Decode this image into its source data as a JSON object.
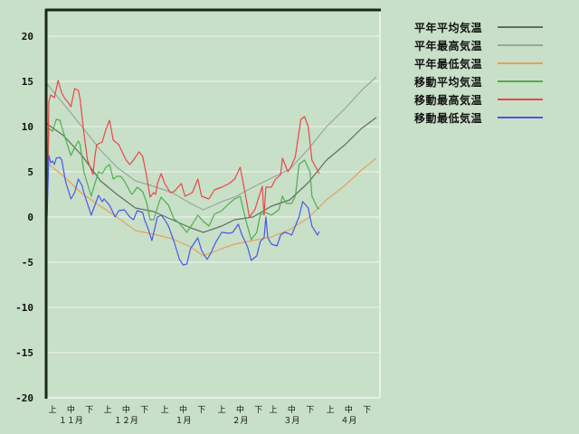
{
  "chart_data": {
    "type": "line",
    "title": "",
    "xlabel": "",
    "ylabel": "",
    "ylim": [
      -20,
      23
    ],
    "yticks": [
      "20",
      "15",
      "10",
      "5",
      "0",
      "-5",
      "-10",
      "-15",
      "-20"
    ],
    "ytick_values": [
      20,
      15,
      10,
      5,
      0,
      -5,
      -10,
      -15,
      -20
    ],
    "grid": true,
    "legend_position": "right",
    "x_months": [
      {
        "label": "１１月",
        "month": "11"
      },
      {
        "label": "１２月",
        "month": "12"
      },
      {
        "label": "１月",
        "month": "01"
      },
      {
        "label": "２月",
        "month": "02"
      },
      {
        "label": "３月",
        "month": "03"
      },
      {
        "label": "４月",
        "month": "04"
      }
    ],
    "x_dekads": [
      "上",
      "中",
      "下"
    ],
    "series": [
      {
        "name": "平年平均気温",
        "color": "#5f6f5f",
        "x": [
          "11-01",
          "11-10",
          "11-20",
          "11-30",
          "12-09",
          "12-19",
          "12-29",
          "01-08",
          "01-18",
          "01-25",
          "02-04",
          "02-11",
          "02-21",
          "03-03",
          "03-13",
          "03-23",
          "04-02",
          "04-12",
          "04-21",
          "04-29"
        ],
        "y": [
          10.3,
          9.0,
          6.8,
          4.0,
          2.5,
          1.0,
          0.6,
          -0.3,
          -1.2,
          -1.7,
          -1.0,
          -0.3,
          0.0,
          1.2,
          1.9,
          3.8,
          6.3,
          8.0,
          9.8,
          11.0
        ]
      },
      {
        "name": "平年最高気温",
        "color": "#98a898",
        "x": [
          "11-01",
          "11-10",
          "11-20",
          "11-30",
          "12-09",
          "12-19",
          "12-29",
          "01-08",
          "01-18",
          "01-25",
          "02-04",
          "02-11",
          "02-21",
          "03-03",
          "03-13",
          "03-23",
          "04-02",
          "04-12",
          "04-21",
          "04-29"
        ],
        "y": [
          14.7,
          12.5,
          10.0,
          7.4,
          5.5,
          4.0,
          3.4,
          2.7,
          1.5,
          0.8,
          1.7,
          2.2,
          3.3,
          4.3,
          5.3,
          7.5,
          10.0,
          12.0,
          14.0,
          15.5
        ]
      },
      {
        "name": "平年最低気温",
        "color": "#e8a060",
        "x": [
          "11-01",
          "11-10",
          "11-20",
          "11-30",
          "12-09",
          "12-19",
          "12-29",
          "01-08",
          "01-18",
          "01-25",
          "02-04",
          "02-11",
          "02-21",
          "03-03",
          "03-13",
          "03-23",
          "04-02",
          "04-12",
          "04-21",
          "04-29"
        ],
        "y": [
          6.0,
          4.5,
          2.6,
          1.2,
          0.0,
          -1.5,
          -1.9,
          -2.4,
          -3.3,
          -4.3,
          -3.5,
          -3.0,
          -2.6,
          -2.2,
          -1.4,
          -0.1,
          1.9,
          3.5,
          5.2,
          6.5
        ]
      },
      {
        "name": "移動平均気温",
        "color": "#4caf4c",
        "x": [
          "11-01",
          "11-02",
          "11-04",
          "11-06",
          "11-08",
          "11-10",
          "11-12",
          "11-14",
          "11-16",
          "11-18",
          "11-19",
          "11-21",
          "11-25",
          "11-27",
          "11-29",
          "12-01",
          "12-03",
          "12-05",
          "12-07",
          "12-09",
          "12-11",
          "12-13",
          "12-17",
          "12-18",
          "12-20",
          "12-23",
          "12-25",
          "12-27",
          "12-29",
          "01-01",
          "01-02",
          "01-06",
          "01-09",
          "01-12",
          "01-16",
          "01-19",
          "01-22",
          "01-25",
          "01-28",
          "01-31",
          "02-04",
          "02-08",
          "02-11",
          "02-14",
          "02-17",
          "02-20",
          "02-23",
          "02-25",
          "02-28",
          "03-03",
          "03-07",
          "03-09",
          "03-11",
          "03-14",
          "03-16",
          "03-18",
          "03-21",
          "03-24",
          "03-25",
          "03-28",
          "03-29"
        ],
        "y": [
          0,
          9.8,
          9.5,
          10.8,
          10.7,
          9.3,
          8.0,
          6.8,
          7.7,
          8.4,
          8.0,
          5.0,
          2.3,
          3.7,
          5.0,
          4.8,
          5.5,
          5.8,
          4.2,
          4.5,
          4.5,
          4.0,
          2.5,
          2.7,
          3.3,
          2.8,
          1.7,
          -0.3,
          -0.3,
          1.7,
          2.2,
          1.3,
          -0.2,
          -0.7,
          -1.7,
          -0.8,
          0.2,
          -0.5,
          -1.0,
          0.3,
          0.7,
          1.5,
          2.0,
          2.3,
          -0.3,
          -2.5,
          -1.7,
          0.3,
          0.5,
          0.2,
          0.8,
          2.3,
          1.5,
          1.5,
          2.3,
          5.8,
          6.3,
          5.0,
          2.3,
          1.0,
          0.9
        ]
      },
      {
        "name": "移動最高気温",
        "color": "#e84848",
        "x": [
          "11-01",
          "11-02",
          "11-03",
          "11-05",
          "11-07",
          "11-09",
          "11-11",
          "11-12",
          "11-14",
          "11-16",
          "11-18",
          "11-19",
          "11-21",
          "11-23",
          "11-26",
          "11-27",
          "11-28",
          "12-01",
          "12-03",
          "12-05",
          "12-07",
          "12-10",
          "12-13",
          "12-14",
          "12-16",
          "12-18",
          "12-21",
          "12-23",
          "12-25",
          "12-27",
          "12-29",
          "12-30",
          "12-31",
          "01-02",
          "01-04",
          "01-07",
          "01-09",
          "01-13",
          "01-15",
          "01-19",
          "01-22",
          "01-24",
          "01-28",
          "01-31",
          "02-04",
          "02-08",
          "02-11",
          "02-14",
          "02-17",
          "02-19",
          "02-22",
          "02-26",
          "02-27",
          "02-28",
          "03-03",
          "03-05",
          "03-08",
          "03-09",
          "03-12",
          "03-14",
          "03-16",
          "03-19",
          "03-21",
          "03-23",
          "03-25",
          "03-29"
        ],
        "y": [
          0,
          12.8,
          13.5,
          13.2,
          15.1,
          13.7,
          13.0,
          12.8,
          12.2,
          14.2,
          14.0,
          13.0,
          9.3,
          6.3,
          4.7,
          6.7,
          8.0,
          8.3,
          9.7,
          10.7,
          8.5,
          8.0,
          6.7,
          6.3,
          5.8,
          6.3,
          7.2,
          6.7,
          4.7,
          2.2,
          2.7,
          2.5,
          3.7,
          4.8,
          3.7,
          2.7,
          2.8,
          3.7,
          2.3,
          2.7,
          4.2,
          2.3,
          2.0,
          3.0,
          3.3,
          3.7,
          4.2,
          5.5,
          2.3,
          0.0,
          0.8,
          3.4,
          0.2,
          3.3,
          3.3,
          4.1,
          4.7,
          6.5,
          5.0,
          5.7,
          6.7,
          10.8,
          11.1,
          10.0,
          6.3,
          4.8
        ]
      },
      {
        "name": "移動最低気温",
        "color": "#4858e8",
        "x": [
          "11-01",
          "11-02",
          "11-03",
          "11-04",
          "11-05",
          "11-06",
          "11-08",
          "11-09",
          "11-11",
          "11-14",
          "11-16",
          "11-18",
          "11-20",
          "11-21",
          "11-25",
          "11-27",
          "11-29",
          "12-01",
          "12-02",
          "12-05",
          "12-08",
          "12-10",
          "12-13",
          "12-16",
          "12-18",
          "12-20",
          "12-23",
          "12-24",
          "12-26",
          "12-28",
          "12-31",
          "01-02",
          "01-04",
          "01-06",
          "01-09",
          "01-12",
          "01-14",
          "01-16",
          "01-18",
          "01-22",
          "01-24",
          "01-27",
          "01-29",
          "02-01",
          "02-04",
          "02-08",
          "02-10",
          "02-13",
          "02-15",
          "02-18",
          "02-20",
          "02-23",
          "02-25",
          "02-27",
          "02-28",
          "03-01",
          "03-03",
          "03-06",
          "03-08",
          "03-10",
          "03-12",
          "03-14",
          "03-18",
          "03-20",
          "03-23",
          "03-25",
          "03-28",
          "03-29"
        ],
        "y": [
          0,
          6.8,
          6.0,
          6.2,
          5.8,
          6.5,
          6.6,
          6.3,
          4.0,
          2.0,
          2.7,
          4.2,
          3.5,
          2.7,
          0.2,
          1.3,
          2.4,
          1.7,
          2.0,
          1.3,
          0.0,
          0.7,
          0.8,
          0.0,
          -0.3,
          0.7,
          0.5,
          -0.3,
          -1.3,
          -2.6,
          0.0,
          0.2,
          -0.3,
          -1.0,
          -2.7,
          -4.7,
          -5.3,
          -5.2,
          -3.5,
          -2.3,
          -3.7,
          -4.7,
          -4.0,
          -2.7,
          -1.7,
          -1.8,
          -1.7,
          -0.8,
          -2.0,
          -3.3,
          -4.8,
          -4.3,
          -2.7,
          -2.3,
          0.0,
          -2.3,
          -3.0,
          -3.2,
          -2.0,
          -1.7,
          -1.8,
          -2.0,
          0.0,
          1.7,
          1.0,
          -1.0,
          -2.0,
          -1.6
        ]
      }
    ]
  }
}
